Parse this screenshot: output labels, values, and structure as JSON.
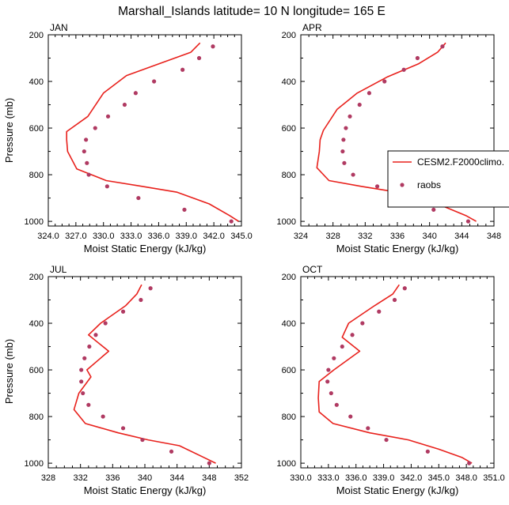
{
  "figure": {
    "title": "Marshall_Islands  latitude= 10 N longitude= 165 E"
  },
  "legend": {
    "items": [
      {
        "label": "CESM2.F2000climo.",
        "kind": "line",
        "color": "#e8211c"
      },
      {
        "label": "raobs",
        "kind": "dot",
        "color": "#b03a62"
      }
    ]
  },
  "colors": {
    "model": "#e8211c",
    "obs": "#b03a62"
  },
  "chart_data": [
    {
      "type": "line",
      "panel_label": "JAN",
      "xlabel": "Moist Static Energy (kJ/kg)",
      "ylabel": "Pressure (mb)",
      "xlim": [
        324.0,
        345.0
      ],
      "ylim": [
        1020,
        200
      ],
      "xticks": [
        "324.0",
        "327.0",
        "330.0",
        "333.0",
        "336.0",
        "339.0",
        "342.0",
        "345.0"
      ],
      "yticks": [
        "200",
        "400",
        "600",
        "800",
        "1000"
      ],
      "series": [
        {
          "name": "CESM2.F2000climo.",
          "kind": "line",
          "x": [
            344.7,
            343.7,
            341.5,
            338.0,
            334.2,
            330.3,
            327.1,
            326.1,
            326.0,
            326.0,
            328.3,
            330.0,
            332.5,
            336.0,
            339.5,
            340.5
          ],
          "y": [
            1000,
            975,
            925,
            875,
            850,
            825,
            775,
            700,
            650,
            615,
            550,
            450,
            375,
            325,
            275,
            235
          ]
        },
        {
          "name": "raobs",
          "kind": "scatter",
          "x": [
            343.9,
            338.8,
            333.8,
            330.4,
            328.4,
            328.2,
            327.9,
            328.1,
            329.1,
            330.5,
            332.3,
            333.5,
            335.5,
            338.6,
            340.4,
            341.9
          ],
          "y": [
            1000,
            950,
            900,
            850,
            800,
            750,
            700,
            650,
            600,
            550,
            500,
            450,
            400,
            350,
            300,
            250
          ]
        }
      ]
    },
    {
      "type": "line",
      "panel_label": "APR",
      "xlabel": "Moist Static Energy (kJ/kg)",
      "ylabel": "",
      "xlim": [
        324,
        348
      ],
      "ylim": [
        1020,
        200
      ],
      "xticks": [
        "324",
        "328",
        "332",
        "336",
        "340",
        "344",
        "348"
      ],
      "yticks": [
        "200",
        "400",
        "600",
        "800",
        "1000"
      ],
      "series": [
        {
          "name": "CESM2.F2000climo.",
          "kind": "line",
          "x": [
            345.8,
            344.5,
            341.0,
            336.0,
            331.5,
            327.5,
            326.0,
            326.3,
            326.4,
            326.8,
            328.5,
            331.0,
            334.8,
            338.6,
            341.0,
            342.0
          ],
          "y": [
            1000,
            975,
            925,
            875,
            850,
            825,
            770,
            700,
            650,
            610,
            520,
            450,
            380,
            325,
            275,
            235
          ]
        },
        {
          "name": "raobs",
          "kind": "scatter",
          "x": [
            344.8,
            340.5,
            336.5,
            333.5,
            330.5,
            329.4,
            329.2,
            329.3,
            329.6,
            330.1,
            331.3,
            332.5,
            334.4,
            336.8,
            338.5,
            341.6
          ],
          "y": [
            1000,
            950,
            900,
            850,
            800,
            750,
            700,
            650,
            600,
            550,
            500,
            450,
            400,
            350,
            300,
            250
          ]
        }
      ]
    },
    {
      "type": "line",
      "panel_label": "JUL",
      "xlabel": "Moist Static Energy (kJ/kg)",
      "ylabel": "Pressure (mb)",
      "xlim": [
        328,
        352
      ],
      "ylim": [
        1020,
        200
      ],
      "xticks": [
        "328",
        "332",
        "336",
        "340",
        "344",
        "348",
        "352"
      ],
      "yticks": [
        "200",
        "400",
        "600",
        "800",
        "1000"
      ],
      "series": [
        {
          "name": "CESM2.F2000climo.",
          "kind": "line",
          "x": [
            348.8,
            347.3,
            344.3,
            340.4,
            336.7,
            332.6,
            331.2,
            331.8,
            333.3,
            332.8,
            335.5,
            333.0,
            334.5,
            337.6,
            339.0,
            339.6
          ],
          "y": [
            1000,
            975,
            925,
            900,
            870,
            830,
            770,
            700,
            630,
            600,
            520,
            450,
            400,
            325,
            275,
            235
          ]
        },
        {
          "name": "raobs",
          "kind": "scatter",
          "x": [
            348.0,
            343.3,
            339.7,
            337.3,
            334.8,
            333.0,
            332.3,
            332.1,
            332.1,
            332.5,
            333.1,
            333.9,
            335.1,
            337.3,
            339.5,
            340.7
          ],
          "y": [
            1000,
            950,
            900,
            850,
            800,
            750,
            700,
            650,
            600,
            550,
            500,
            450,
            400,
            350,
            300,
            250
          ]
        }
      ]
    },
    {
      "type": "line",
      "panel_label": "OCT",
      "xlabel": "Moist Static Energy (kJ/kg)",
      "ylabel": "",
      "xlim": [
        330.0,
        351.0
      ],
      "ylim": [
        1020,
        200
      ],
      "xticks": [
        "330.0",
        "333.0",
        "336.0",
        "339.0",
        "342.0",
        "345.0",
        "348.0",
        "351.0"
      ],
      "yticks": [
        "200",
        "400",
        "600",
        "800",
        "1000"
      ],
      "series": [
        {
          "name": "CESM2.F2000climo.",
          "kind": "line",
          "x": [
            348.6,
            347.5,
            345.0,
            341.7,
            337.5,
            333.5,
            332.0,
            331.9,
            332.0,
            333.6,
            336.4,
            334.5,
            335.2,
            338.0,
            340.0,
            340.7
          ],
          "y": [
            1000,
            975,
            940,
            900,
            870,
            830,
            780,
            720,
            650,
            600,
            520,
            460,
            400,
            325,
            275,
            235
          ]
        },
        {
          "name": "raobs",
          "kind": "scatter",
          "x": [
            348.3,
            343.8,
            339.3,
            337.3,
            335.4,
            333.9,
            333.3,
            332.9,
            333.0,
            333.6,
            334.5,
            335.6,
            336.7,
            338.5,
            340.2,
            341.3
          ],
          "y": [
            1000,
            950,
            900,
            850,
            800,
            750,
            700,
            650,
            600,
            550,
            500,
            450,
            400,
            350,
            300,
            250
          ]
        }
      ]
    }
  ]
}
